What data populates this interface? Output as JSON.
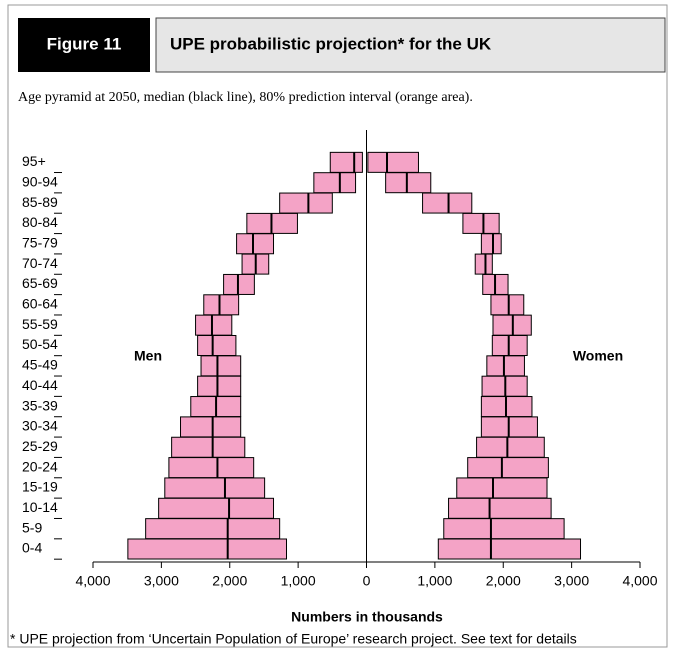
{
  "chart_data": {
    "type": "pyramid",
    "figure_label": "Figure 11",
    "title": "UPE probabilistic projection* for the UK",
    "subtitle": "Age pyramid at 2050, median (black line), 80% prediction interval (orange area).",
    "x_label": "Numbers in thousands",
    "footnote": "* UPE projection from ‘Uncertain Population of Europe’ research project. See text for details",
    "categories": [
      "0-4",
      "5-9",
      "10-14",
      "15-19",
      "20-24",
      "25-29",
      "30-34",
      "35-39",
      "40-44",
      "45-49",
      "50-54",
      "55-59",
      "60-64",
      "65-69",
      "70-74",
      "75-79",
      "80-84",
      "85-89",
      "90-94",
      "95+"
    ],
    "xlim": [
      -4000,
      4000
    ],
    "xticks": [
      {
        "value": -4000,
        "label": "4,000"
      },
      {
        "value": -3000,
        "label": "3,000"
      },
      {
        "value": -2000,
        "label": "2,000"
      },
      {
        "value": -1000,
        "label": "1,000"
      },
      0,
      {
        "value": 1000,
        "label": "1,000"
      },
      {
        "value": 2000,
        "label": "2,000"
      },
      {
        "value": 3000,
        "label": "3,000"
      },
      {
        "value": 4000,
        "label": "4,000"
      }
    ],
    "series": [
      {
        "name": "Men",
        "color": "#f4a3c6",
        "low": [
          -3490,
          -3230,
          -3040,
          -2950,
          -2890,
          -2850,
          -2720,
          -2570,
          -2470,
          -2420,
          -2470,
          -2500,
          -2380,
          -2090,
          -1820,
          -1900,
          -1750,
          -1270,
          -770,
          -530
        ],
        "median": [
          -2030,
          -2030,
          -2010,
          -2070,
          -2180,
          -2250,
          -2250,
          -2200,
          -2180,
          -2180,
          -2250,
          -2260,
          -2150,
          -1880,
          -1620,
          -1660,
          -1390,
          -850,
          -390,
          -180
        ],
        "high": [
          -1170,
          -1270,
          -1360,
          -1490,
          -1650,
          -1780,
          -1840,
          -1840,
          -1840,
          -1840,
          -1910,
          -1970,
          -1870,
          -1640,
          -1430,
          -1360,
          -1010,
          -500,
          -160,
          -60
        ]
      },
      {
        "name": "Women",
        "color": "#f4a3c6",
        "low": [
          1050,
          1130,
          1200,
          1320,
          1480,
          1610,
          1680,
          1680,
          1690,
          1760,
          1840,
          1850,
          1820,
          1700,
          1590,
          1680,
          1410,
          820,
          280,
          20
        ],
        "median": [
          1820,
          1820,
          1800,
          1850,
          1980,
          2060,
          2080,
          2040,
          2030,
          2010,
          2080,
          2140,
          2080,
          1880,
          1740,
          1850,
          1710,
          1200,
          590,
          300
        ],
        "high": [
          3130,
          2890,
          2700,
          2640,
          2660,
          2600,
          2500,
          2420,
          2350,
          2310,
          2350,
          2410,
          2300,
          2070,
          1840,
          1970,
          1940,
          1540,
          940,
          760
        ]
      }
    ]
  }
}
